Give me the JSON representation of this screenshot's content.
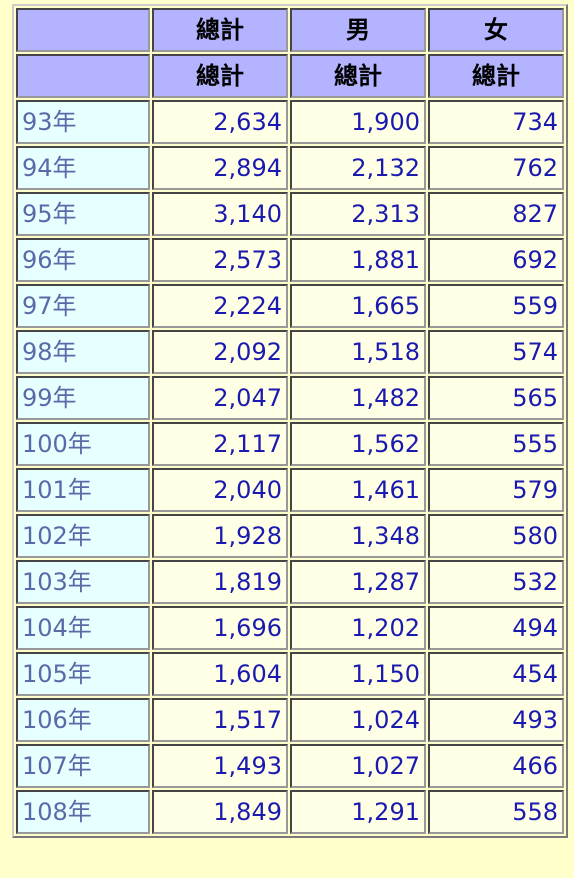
{
  "header": {
    "row1": [
      "總計",
      "男",
      "女"
    ],
    "row2": [
      "總計",
      "總計",
      "總計"
    ]
  },
  "rows": [
    {
      "label": "93年",
      "total": "2,634",
      "male": "1,900",
      "female": "734"
    },
    {
      "label": "94年",
      "total": "2,894",
      "male": "2,132",
      "female": "762"
    },
    {
      "label": "95年",
      "total": "3,140",
      "male": "2,313",
      "female": "827"
    },
    {
      "label": "96年",
      "total": "2,573",
      "male": "1,881",
      "female": "692"
    },
    {
      "label": "97年",
      "total": "2,224",
      "male": "1,665",
      "female": "559"
    },
    {
      "label": "98年",
      "total": "2,092",
      "male": "1,518",
      "female": "574"
    },
    {
      "label": "99年",
      "total": "2,047",
      "male": "1,482",
      "female": "565"
    },
    {
      "label": "100年",
      "total": "2,117",
      "male": "1,562",
      "female": "555"
    },
    {
      "label": "101年",
      "total": "2,040",
      "male": "1,461",
      "female": "579"
    },
    {
      "label": "102年",
      "total": "1,928",
      "male": "1,348",
      "female": "580"
    },
    {
      "label": "103年",
      "total": "1,819",
      "male": "1,287",
      "female": "532"
    },
    {
      "label": "104年",
      "total": "1,696",
      "male": "1,202",
      "female": "494"
    },
    {
      "label": "105年",
      "total": "1,604",
      "male": "1,150",
      "female": "454"
    },
    {
      "label": "106年",
      "total": "1,517",
      "male": "1,024",
      "female": "493"
    },
    {
      "label": "107年",
      "total": "1,493",
      "male": "1,027",
      "female": "466"
    },
    {
      "label": "108年",
      "total": "1,849",
      "male": "1,291",
      "female": "558"
    }
  ],
  "colors": {
    "page_background": "#ffffcc",
    "header_background": "#b3b3ff",
    "row_label_background": "#e6ffff",
    "cell_background": "#ffffe6",
    "number_text": "#1a1ab0",
    "row_label_text": "#5a6aa8"
  }
}
